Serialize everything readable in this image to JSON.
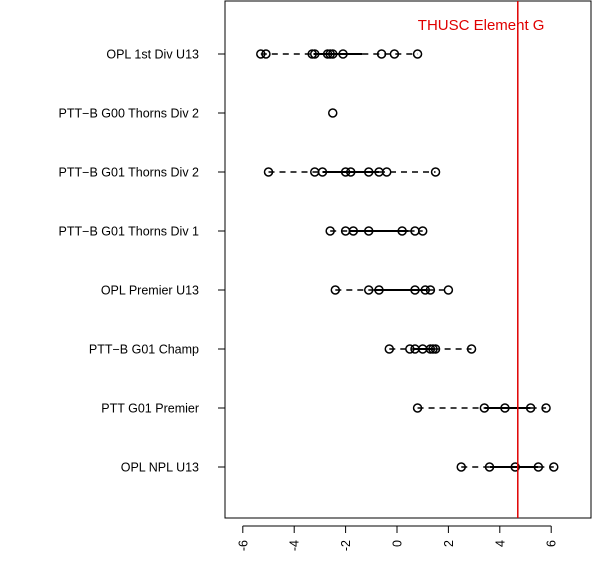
{
  "chart_data": {
    "type": "boxplot",
    "orientation": "horizontal",
    "title": "",
    "xlabel": "",
    "ylabel": "",
    "xlim": [
      -7,
      7.8
    ],
    "x_ticks": [
      "-6",
      "-4",
      "-2",
      "0",
      "2",
      "4",
      "6"
    ],
    "x_tick_values": [
      -6,
      -4,
      -2,
      0,
      2,
      4,
      6
    ],
    "categories": [
      "OPL 1st Div U13",
      "PTT−B G00 Thorns Div 2",
      "PTT−B G01 Thorns Div 2",
      "PTT−B G01 Thorns Div 1",
      "OPL Premier U13",
      "PTT−B G01 Champ",
      "PTT G01 Premier",
      "OPL NPL U13"
    ],
    "series": [
      {
        "values": [
          -5.3,
          -5.1,
          -3.3,
          -3.2,
          -2.7,
          -2.6,
          -2.5,
          -2.1,
          -0.6,
          -0.1,
          0.8
        ]
      },
      {
        "values": [
          -2.5
        ]
      },
      {
        "values": [
          -5.0,
          -3.2,
          -2.9,
          -2.0,
          -1.8,
          -1.1,
          -0.7,
          -0.4,
          1.5
        ]
      },
      {
        "values": [
          -2.6,
          -2.0,
          -1.7,
          -1.1,
          0.2,
          0.7,
          1.0
        ]
      },
      {
        "values": [
          -2.4,
          -1.1,
          -0.7,
          0.7,
          1.1,
          1.3,
          2.0
        ]
      },
      {
        "values": [
          -0.3,
          0.5,
          0.7,
          1.0,
          1.3,
          1.4,
          1.5,
          2.9
        ]
      },
      {
        "values": [
          0.8,
          3.4,
          4.2,
          5.2,
          5.8
        ]
      },
      {
        "values": [
          2.5,
          3.6,
          4.6,
          5.5,
          6.1
        ]
      }
    ],
    "reference_line": {
      "value": 4.7,
      "label": "THUSC Element G",
      "color": "#e00000"
    },
    "grid": false
  }
}
